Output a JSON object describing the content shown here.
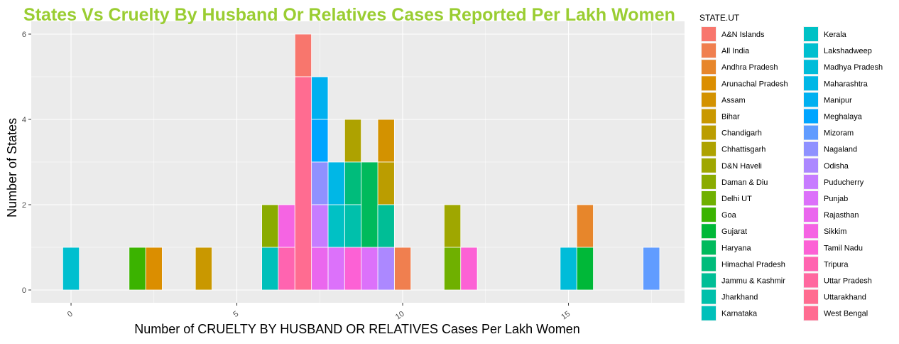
{
  "chart_data": {
    "type": "bar",
    "title": "States Vs Cruelty By Husband Or Relatives Cases Reported Per Lakh Women",
    "xlabel": "Number of CRUELTY BY HUSBAND OR RELATIVES Cases Per Lakh Women",
    "ylabel": "Number of States",
    "xlim": [
      -1.2,
      18.5
    ],
    "ylim": [
      -0.3,
      6.3
    ],
    "bin_width": 0.5,
    "x_ticks": [
      0,
      5,
      10,
      15
    ],
    "y_ticks": [
      0,
      2,
      4,
      6
    ],
    "grid": true,
    "legend_title": "STATE.UT",
    "legend_position": "right",
    "series": [
      {
        "name": "A&N Islands",
        "color": "#F8766D",
        "bars": [
          {
            "x": 7,
            "y0": 5,
            "y1": 6
          }
        ]
      },
      {
        "name": "All India",
        "color": "#F07F4F",
        "bars": [
          {
            "x": 10,
            "y0": 0,
            "y1": 1
          }
        ]
      },
      {
        "name": "Andhra Pradesh",
        "color": "#E7862B",
        "bars": [
          {
            "x": 15.5,
            "y0": 1,
            "y1": 2
          }
        ]
      },
      {
        "name": "Arunachal Pradesh",
        "color": "#DB8E00",
        "bars": [
          {
            "x": 2.5,
            "y0": 0,
            "y1": 1
          }
        ]
      },
      {
        "name": "Assam",
        "color": "#D39200",
        "bars": [
          {
            "x": 9.5,
            "y0": 3,
            "y1": 4
          }
        ]
      },
      {
        "name": "Bihar",
        "color": "#C99800",
        "bars": [
          {
            "x": 4,
            "y0": 0,
            "y1": 1
          }
        ]
      },
      {
        "name": "Chandigarh",
        "color": "#BB9D00",
        "bars": [
          {
            "x": 9.5,
            "y0": 2,
            "y1": 3
          }
        ]
      },
      {
        "name": "Chhattisgarh",
        "color": "#AEA200",
        "bars": [
          {
            "x": 8.5,
            "y0": 3,
            "y1": 4
          }
        ]
      },
      {
        "name": "D&N Haveli",
        "color": "#9FA700",
        "bars": [
          {
            "x": 11.5,
            "y0": 1,
            "y1": 2
          }
        ]
      },
      {
        "name": "Daman & Diu",
        "color": "#8AAB00",
        "bars": [
          {
            "x": 6,
            "y0": 1,
            "y1": 2
          }
        ]
      },
      {
        "name": "Delhi UT",
        "color": "#6FB000",
        "bars": [
          {
            "x": 11.5,
            "y0": 0,
            "y1": 1
          }
        ]
      },
      {
        "name": "Goa",
        "color": "#3BB300",
        "bars": [
          {
            "x": 2,
            "y0": 0,
            "y1": 1
          }
        ]
      },
      {
        "name": "Gujarat",
        "color": "#00B838",
        "bars": [
          {
            "x": 15.5,
            "y0": 0,
            "y1": 1
          }
        ]
      },
      {
        "name": "Haryana",
        "color": "#00BA5C",
        "bars": [
          {
            "x": 9,
            "y0": 1,
            "y1": 3
          }
        ]
      },
      {
        "name": "Himachal Pradesh",
        "color": "#00BC7B",
        "bars": [
          {
            "x": 8.5,
            "y0": 2,
            "y1": 3
          }
        ]
      },
      {
        "name": "Jammu & Kashmir",
        "color": "#00BE96",
        "bars": [
          {
            "x": 9.5,
            "y0": 1,
            "y1": 2
          }
        ]
      },
      {
        "name": "Jharkhand",
        "color": "#00C0AB",
        "bars": [
          {
            "x": 8.5,
            "y0": 1,
            "y1": 2
          }
        ]
      },
      {
        "name": "Karnataka",
        "color": "#00C0BA",
        "bars": [
          {
            "x": 6,
            "y0": 0,
            "y1": 1
          }
        ]
      },
      {
        "name": "Kerala",
        "color": "#00C1C5",
        "bars": [
          {
            "x": 8,
            "y0": 1,
            "y1": 2
          }
        ]
      },
      {
        "name": "Lakshadweep",
        "color": "#00BFCF",
        "bars": [
          {
            "x": 0,
            "y0": 0,
            "y1": 1
          }
        ]
      },
      {
        "name": "Madhya Pradesh",
        "color": "#00BCD9",
        "bars": [
          {
            "x": 15,
            "y0": 0,
            "y1": 1
          }
        ]
      },
      {
        "name": "Maharashtra",
        "color": "#00B7E6",
        "bars": [
          {
            "x": 8,
            "y0": 2,
            "y1": 3
          }
        ]
      },
      {
        "name": "Manipur",
        "color": "#00B0F0",
        "bars": [
          {
            "x": 7.5,
            "y0": 4,
            "y1": 5
          }
        ]
      },
      {
        "name": "Meghalaya",
        "color": "#00A5FF",
        "bars": [
          {
            "x": 7.5,
            "y0": 3,
            "y1": 4
          }
        ]
      },
      {
        "name": "Mizoram",
        "color": "#619CFF",
        "bars": [
          {
            "x": 17.5,
            "y0": 0,
            "y1": 1
          }
        ]
      },
      {
        "name": "Nagaland",
        "color": "#8F91FF",
        "bars": [
          {
            "x": 7.5,
            "y0": 2,
            "y1": 3
          }
        ]
      },
      {
        "name": "Odisha",
        "color": "#AC88FF",
        "bars": [
          {
            "x": 9.5,
            "y0": 0,
            "y1": 1
          }
        ]
      },
      {
        "name": "Puducherry",
        "color": "#C77CFF",
        "bars": [
          {
            "x": 7.5,
            "y0": 1,
            "y1": 2
          }
        ]
      },
      {
        "name": "Punjab",
        "color": "#DC71FA",
        "bars": [
          {
            "x": 8,
            "y0": 0,
            "y1": 1
          },
          {
            "x": 9,
            "y0": 0,
            "y1": 1
          }
        ]
      },
      {
        "name": "Rajasthan",
        "color": "#EA67EE",
        "bars": [
          {
            "x": 7.5,
            "y0": 0,
            "y1": 1
          }
        ]
      },
      {
        "name": "Sikkim",
        "color": "#F564E3",
        "bars": [
          {
            "x": 6.5,
            "y0": 1,
            "y1": 2
          }
        ]
      },
      {
        "name": "Tamil Nadu",
        "color": "#FC61D5",
        "bars": [
          {
            "x": 8.5,
            "y0": 0,
            "y1": 1
          },
          {
            "x": 12,
            "y0": 0,
            "y1": 1
          }
        ]
      },
      {
        "name": "Tripura",
        "color": "#FF64B0",
        "bars": [
          {
            "x": 6.5,
            "y0": 0,
            "y1": 1
          }
        ]
      },
      {
        "name": "Uttar Pradesh",
        "color": "#FF689F",
        "bars": []
      },
      {
        "name": "Uttarakhand",
        "color": "#FF6C90",
        "bars": []
      },
      {
        "name": "West Bengal",
        "color": "#FF6C91",
        "bars": [
          {
            "x": 7,
            "y0": 0,
            "y1": 5
          }
        ]
      }
    ]
  },
  "colors": {
    "title": "#9ACD32",
    "panel_background": "#EBEBEB",
    "grid_major": "#FFFFFF",
    "bar_outline": "#FFFFFF"
  }
}
